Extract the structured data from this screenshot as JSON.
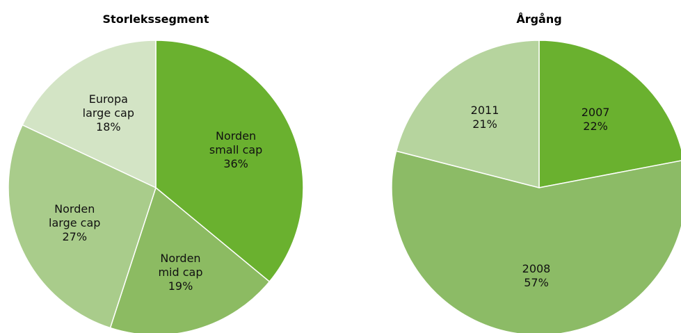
{
  "chart_data": [
    {
      "type": "pie",
      "title": "Storlekssegment",
      "categories": [
        "Norden small cap",
        "Norden mid cap",
        "Norden large cap",
        "Europa large cap"
      ],
      "values": [
        36,
        19,
        27,
        18
      ],
      "value_labels": [
        "36%",
        "19%",
        "27%",
        "18%"
      ],
      "colors": [
        "#6ab12f",
        "#8cbb62",
        "#a9cc8b",
        "#d3e4c5"
      ]
    },
    {
      "type": "pie",
      "title": "Årgång",
      "categories": [
        "2007",
        "2008",
        "2011"
      ],
      "values": [
        22,
        57,
        21
      ],
      "value_labels": [
        "22%",
        "57%",
        "21%"
      ],
      "colors": [
        "#6ab12f",
        "#8cbb66",
        "#b6d49e"
      ]
    }
  ]
}
